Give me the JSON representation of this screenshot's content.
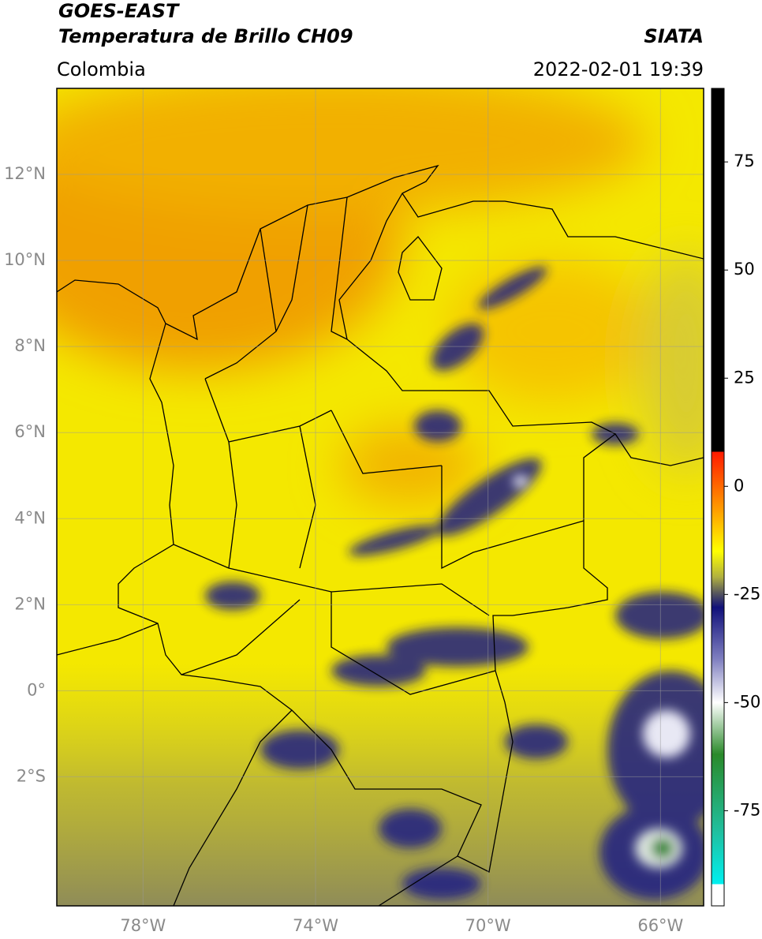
{
  "header": {
    "satellite": "GOES-EAST",
    "product": "Temperatura de Brillo CH09",
    "source": "SIATA",
    "region": "Colombia",
    "datetime": "2022-02-01 19:39"
  },
  "map": {
    "xlim": [
      -80,
      -65
    ],
    "ylim": [
      -5,
      14
    ],
    "grid": true,
    "xticks": [
      {
        "value": -78,
        "label": "78°W"
      },
      {
        "value": -74,
        "label": "74°W"
      },
      {
        "value": -70,
        "label": "70°W"
      },
      {
        "value": -66,
        "label": "66°W"
      }
    ],
    "yticks": [
      {
        "value": 12,
        "label": "12°N"
      },
      {
        "value": 10,
        "label": "10°N"
      },
      {
        "value": 8,
        "label": "8°N"
      },
      {
        "value": 6,
        "label": "6°N"
      },
      {
        "value": 4,
        "label": "4°N"
      },
      {
        "value": 2,
        "label": "2°N"
      },
      {
        "value": 0,
        "label": "0°"
      },
      {
        "value": -2,
        "label": "2°S"
      }
    ]
  },
  "colorbar": {
    "lim": [
      -97,
      92
    ],
    "ticks": [
      75,
      50,
      25,
      0,
      -25,
      -50,
      -75
    ],
    "colormap": [
      {
        "value": 92,
        "color": "#000000"
      },
      {
        "value": 8,
        "color": "#000000"
      },
      {
        "value": 8,
        "color": "#ff1a00"
      },
      {
        "value": -5,
        "color": "#ff9900"
      },
      {
        "value": -15,
        "color": "#ffff00"
      },
      {
        "value": -21,
        "color": "#b0b040"
      },
      {
        "value": -25,
        "color": "#505060"
      },
      {
        "value": -28,
        "color": "#10107a"
      },
      {
        "value": -40,
        "color": "#8080c0"
      },
      {
        "value": -50,
        "color": "#ffffff"
      },
      {
        "value": -62,
        "color": "#2a8a2a"
      },
      {
        "value": -80,
        "color": "#20c0a0"
      },
      {
        "value": -92,
        "color": "#00f0f0"
      },
      {
        "value": -92,
        "color": "#ffffff"
      },
      {
        "value": -97,
        "color": "#ffffff"
      }
    ]
  }
}
